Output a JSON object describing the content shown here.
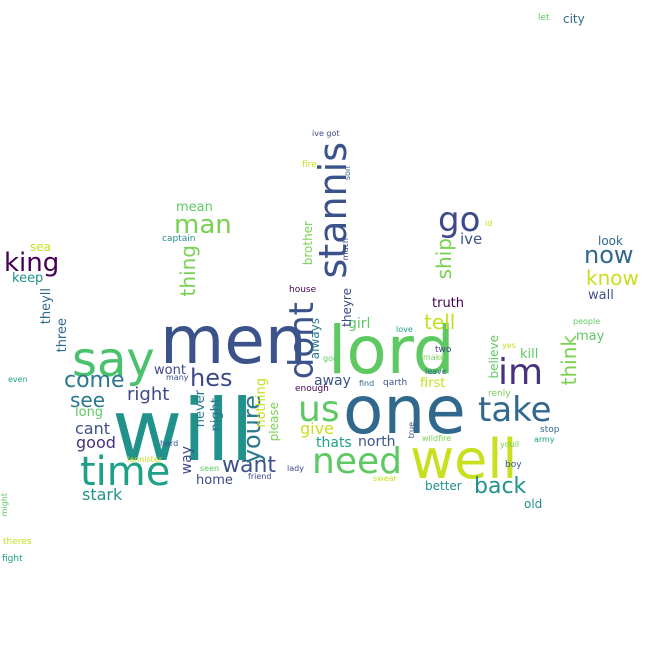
{
  "words": [
    {
      "text": "will",
      "color": "#21918c"
    },
    {
      "text": "one",
      "color": "#31688e"
    },
    {
      "text": "lord",
      "color": "#5ec962"
    },
    {
      "text": "men",
      "color": "#3b528b"
    },
    {
      "text": "well",
      "color": "#c8e020"
    },
    {
      "text": "say",
      "color": "#4ac16d"
    },
    {
      "text": "time",
      "color": "#1fa187"
    },
    {
      "text": "need",
      "color": "#5ec962"
    },
    {
      "text": "stannis",
      "color": "#3b528b"
    },
    {
      "text": "dont",
      "color": "#3b528b"
    },
    {
      "text": "take",
      "color": "#31688e"
    },
    {
      "text": "im",
      "color": "#46327e"
    },
    {
      "text": "us",
      "color": "#5ec962"
    },
    {
      "text": "go",
      "color": "#3e4989"
    },
    {
      "text": "back",
      "color": "#21918c"
    },
    {
      "text": "man",
      "color": "#7ad151"
    },
    {
      "text": "king",
      "color": "#440154"
    },
    {
      "text": "come",
      "color": "#2a788e"
    },
    {
      "text": "hes",
      "color": "#3e4989"
    },
    {
      "text": "want",
      "color": "#3b528b"
    },
    {
      "text": "youre",
      "color": "#2a788e"
    },
    {
      "text": "now",
      "color": "#31688e"
    },
    {
      "text": "know",
      "color": "#c8e020"
    },
    {
      "text": "tell",
      "color": "#c8e020"
    },
    {
      "text": "see",
      "color": "#2a788e"
    },
    {
      "text": "thing",
      "color": "#7ad151"
    },
    {
      "text": "ship",
      "color": "#7ad151"
    },
    {
      "text": "think",
      "color": "#7ad151"
    },
    {
      "text": "right",
      "color": "#3e4989"
    },
    {
      "text": "stark",
      "color": "#21918c"
    },
    {
      "text": "give",
      "color": "#c8e020"
    },
    {
      "text": "good",
      "color": "#46327e"
    },
    {
      "text": "cant",
      "color": "#3b528b"
    },
    {
      "text": "mean",
      "color": "#5ec962"
    },
    {
      "text": "ive",
      "color": "#3b528b"
    },
    {
      "text": "girl",
      "color": "#5ec962"
    },
    {
      "text": "away",
      "color": "#3b528b"
    },
    {
      "text": "thats",
      "color": "#1fa187"
    },
    {
      "text": "north",
      "color": "#3b528b"
    },
    {
      "text": "three",
      "color": "#31688e"
    },
    {
      "text": "theyll",
      "color": "#31688e"
    },
    {
      "text": "keep",
      "color": "#21918c"
    },
    {
      "text": "long",
      "color": "#5ec962"
    },
    {
      "text": "wont",
      "color": "#3e4989"
    },
    {
      "text": "way",
      "color": "#3e4989"
    },
    {
      "text": "home",
      "color": "#3e4989"
    },
    {
      "text": "never",
      "color": "#2a788e"
    },
    {
      "text": "night",
      "color": "#2a788e"
    },
    {
      "text": "nothing",
      "color": "#c8e020"
    },
    {
      "text": "please",
      "color": "#7ad151"
    },
    {
      "text": "always",
      "color": "#2a788e"
    },
    {
      "text": "theyre",
      "color": "#3e4989"
    },
    {
      "text": "brother",
      "color": "#7ad151"
    },
    {
      "text": "truth",
      "color": "#440154"
    },
    {
      "text": "first",
      "color": "#c8e020"
    },
    {
      "text": "kill",
      "color": "#5ec962"
    },
    {
      "text": "may",
      "color": "#5ec962"
    },
    {
      "text": "believe",
      "color": "#5ec962"
    },
    {
      "text": "wall",
      "color": "#3b528b"
    },
    {
      "text": "look",
      "color": "#31688e"
    },
    {
      "text": "better",
      "color": "#21918c"
    },
    {
      "text": "old",
      "color": "#21918c"
    },
    {
      "text": "sea",
      "color": "#c8e020"
    },
    {
      "text": "city",
      "color": "#31688e"
    },
    {
      "text": "let",
      "color": "#5ec962"
    },
    {
      "text": "ive got",
      "color": "#3e4989"
    },
    {
      "text": "fire",
      "color": "#c8e020"
    },
    {
      "text": "son",
      "color": "#31688e"
    },
    {
      "text": "much",
      "color": "#3e4989"
    },
    {
      "text": "captain",
      "color": "#21918c"
    },
    {
      "text": "house",
      "color": "#440154"
    },
    {
      "text": "enough",
      "color": "#440154"
    },
    {
      "text": "god",
      "color": "#5ec962"
    },
    {
      "text": "find",
      "color": "#31688e"
    },
    {
      "text": "qarth",
      "color": "#3b528b"
    },
    {
      "text": "love",
      "color": "#1fa187"
    },
    {
      "text": "two",
      "color": "#3e4989"
    },
    {
      "text": "make",
      "color": "#7ad151"
    },
    {
      "text": "leave",
      "color": "#31688e"
    },
    {
      "text": "yes",
      "color": "#c8e020"
    },
    {
      "text": "renly",
      "color": "#7ad151"
    },
    {
      "text": "stop",
      "color": "#31688e"
    },
    {
      "text": "army",
      "color": "#1fa187"
    },
    {
      "text": "people",
      "color": "#5ec962"
    },
    {
      "text": "true",
      "color": "#3e4989"
    },
    {
      "text": "wildfire",
      "color": "#7ad151"
    },
    {
      "text": "youll",
      "color": "#7ad151"
    },
    {
      "text": "boy",
      "color": "#3b528b"
    },
    {
      "text": "swear",
      "color": "#c8e020"
    },
    {
      "text": "seen",
      "color": "#5ec962"
    },
    {
      "text": "lady",
      "color": "#3e4989"
    },
    {
      "text": "friend",
      "color": "#3e4989"
    },
    {
      "text": "hard",
      "color": "#3b528b"
    },
    {
      "text": "many",
      "color": "#3b528b"
    },
    {
      "text": "even",
      "color": "#1fa187"
    },
    {
      "text": "lannister",
      "color": "#c8e020"
    },
    {
      "text": "might",
      "color": "#5ec962"
    },
    {
      "text": "theres",
      "color": "#c8e020"
    },
    {
      "text": "fight",
      "color": "#1fa187"
    },
    {
      "text": "id",
      "color": "#c8e020"
    }
  ]
}
